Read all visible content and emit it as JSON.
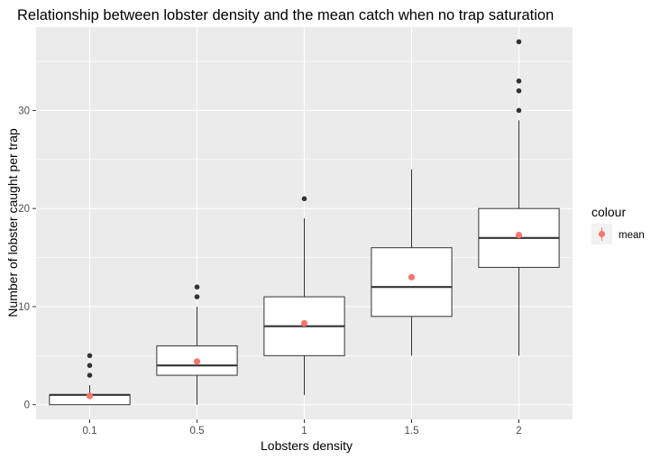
{
  "chart_data": {
    "type": "boxplot",
    "title": "Relationship between lobster density and the mean catch when no trap saturation",
    "xlabel": "Lobsters density",
    "ylabel": "Number of lobster caught per trap",
    "categories": [
      "0.1",
      "0.5",
      "1",
      "1.5",
      "2"
    ],
    "y_ticks": [
      0,
      10,
      20,
      30
    ],
    "ylim": [
      -1.5,
      38.5
    ],
    "grid": true,
    "boxes": [
      {
        "category": "0.1",
        "whisker_low": 0,
        "q1": 0,
        "median": 1,
        "q3": 1,
        "whisker_high": 2,
        "outliers": [
          3,
          4,
          5
        ],
        "mean": 0.9
      },
      {
        "category": "0.5",
        "whisker_low": 0,
        "q1": 3,
        "median": 4,
        "q3": 6,
        "whisker_high": 10,
        "outliers": [
          11,
          12
        ],
        "mean": 4.4
      },
      {
        "category": "1",
        "whisker_low": 1,
        "q1": 5,
        "median": 8,
        "q3": 11,
        "whisker_high": 19,
        "outliers": [
          21
        ],
        "mean": 8.3
      },
      {
        "category": "1.5",
        "whisker_low": 5,
        "q1": 9,
        "median": 12,
        "q3": 16,
        "whisker_high": 24,
        "outliers": [],
        "mean": 13
      },
      {
        "category": "2",
        "whisker_low": 5,
        "q1": 14,
        "median": 17,
        "q3": 20,
        "whisker_high": 29,
        "outliers": [
          30,
          32,
          33,
          37
        ],
        "mean": 17.3
      }
    ],
    "legend": {
      "title": "colour",
      "placement": "right",
      "entries": [
        {
          "label": "mean",
          "color": "#f8766d"
        }
      ]
    },
    "colors": {
      "panel": "#ebebeb",
      "grid_major": "#ffffff",
      "box_fill": "#ffffff",
      "box_line": "#333333",
      "outlier": "#333333",
      "mean_point": "#f8766d"
    }
  }
}
